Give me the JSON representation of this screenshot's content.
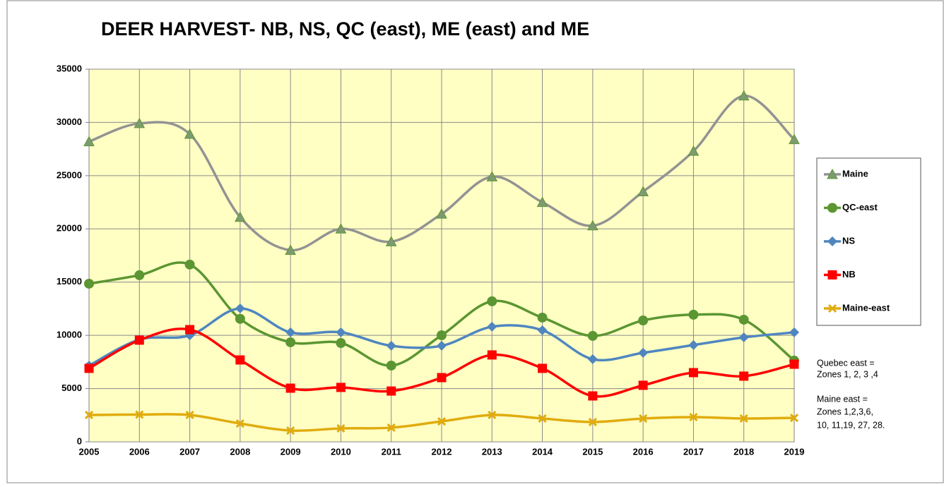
{
  "chart_data": {
    "type": "line",
    "title": "DEER HARVEST- NB, NS, QC (east), ME (east) and ME",
    "categories": [
      "2005",
      "2006",
      "2007",
      "2008",
      "2009",
      "2010",
      "2011",
      "2012",
      "2013",
      "2014",
      "2015",
      "2016",
      "2017",
      "2018",
      "2019"
    ],
    "series": [
      {
        "name": "Maine",
        "color": "#939393",
        "marker": "triangle",
        "values": [
          28200,
          29900,
          28900,
          21100,
          18000,
          20000,
          18800,
          21400,
          24900,
          22500,
          20300,
          23500,
          27300,
          32500,
          28400
        ]
      },
      {
        "name": "QC-east",
        "color": "#5b9632",
        "marker": "circle",
        "values": [
          14850,
          15650,
          16650,
          11550,
          9350,
          9280,
          7160,
          10010,
          13200,
          11670,
          9950,
          11400,
          11940,
          11470,
          7630
        ]
      },
      {
        "name": "NS",
        "color": "#4f86c0",
        "marker": "diamond",
        "values": [
          7160,
          9600,
          10000,
          12530,
          10280,
          10280,
          9020,
          9020,
          10810,
          10480,
          7760,
          8360,
          9090,
          9810,
          10280
        ]
      },
      {
        "name": "NB",
        "color": "#ff0000",
        "marker": "square",
        "values": [
          6900,
          9550,
          10540,
          7690,
          5040,
          5110,
          4770,
          6030,
          8160,
          6900,
          4310,
          5310,
          6500,
          6170,
          7290
        ]
      },
      {
        "name": "Maine-east",
        "color": "#e0ac0e",
        "marker": "x",
        "values": [
          2520,
          2560,
          2520,
          1720,
          1060,
          1260,
          1330,
          1920,
          2520,
          2190,
          1860,
          2190,
          2320,
          2190,
          2250
        ]
      }
    ],
    "ylim": [
      0,
      35000
    ],
    "yticks": [
      0,
      5000,
      10000,
      15000,
      20000,
      25000,
      30000,
      35000
    ],
    "grid": true,
    "smooth": true,
    "legend": "right",
    "notes": [
      "Quebec east =",
      "Zones 1, 2, 3 ,4",
      "Maine east =",
      "Zones 1,2,3,6,",
      "10, 11,19, 27, 28."
    ]
  }
}
